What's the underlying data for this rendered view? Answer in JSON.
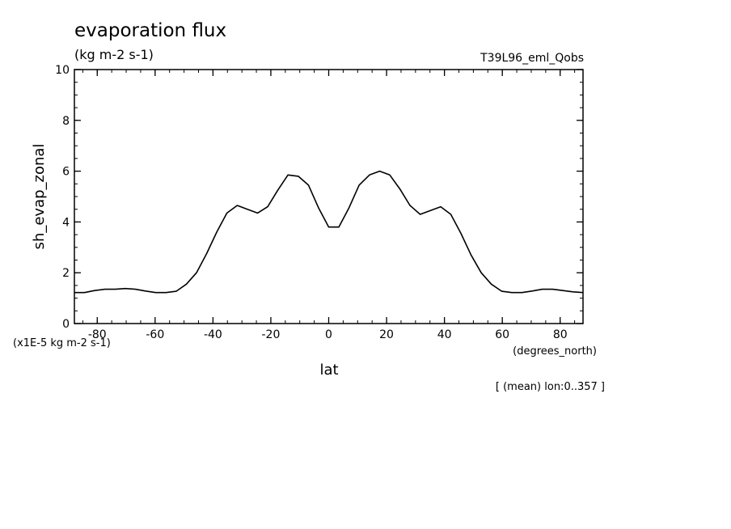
{
  "chart_data": {
    "type": "line",
    "title": "evaporation flux",
    "units": "(kg m-2 s-1)",
    "experiment": "T39L96_eml_Qobs",
    "ylabel": "sh_evap_zonal",
    "xlabel": "lat",
    "x_units": "(degrees_north)",
    "y_scale_note": "(x1E-5 kg m-2 s-1)",
    "footnote": "[ (mean) lon:0..357 ]",
    "xlim": [
      -87.9,
      87.9
    ],
    "ylim": [
      0,
      10
    ],
    "grid": false,
    "x_ticks": [
      -80,
      -60,
      -40,
      -20,
      0,
      20,
      40,
      60,
      80
    ],
    "x_tick_labels": [
      "-80",
      "-60",
      "-40",
      "-20",
      "0",
      "20",
      "40",
      "60",
      "80"
    ],
    "y_ticks": [
      0,
      2,
      4,
      6,
      8,
      10
    ],
    "y_tick_labels": [
      "0",
      "2",
      "4",
      "6",
      "8",
      "10"
    ],
    "series": [
      {
        "x": [
          -87.9,
          -84.4,
          -80.9,
          -77.4,
          -73.8,
          -70.3,
          -66.8,
          -63.3,
          -59.8,
          -56.2,
          -52.7,
          -49.2,
          -45.7,
          -42.2,
          -38.7,
          -35.2,
          -31.6,
          -28.1,
          -24.6,
          -21.1,
          -17.6,
          -14.1,
          -10.5,
          -7.0,
          -3.5,
          0.0,
          3.5,
          7.0,
          10.5,
          14.1,
          17.6,
          21.1,
          24.6,
          28.1,
          31.6,
          35.2,
          38.7,
          42.2,
          45.7,
          49.2,
          52.7,
          56.2,
          59.8,
          63.3,
          66.8,
          70.3,
          73.8,
          77.4,
          80.9,
          84.4,
          87.9
        ],
        "y": [
          1.22,
          1.22,
          1.3,
          1.35,
          1.35,
          1.38,
          1.35,
          1.28,
          1.22,
          1.22,
          1.27,
          1.55,
          2.0,
          2.75,
          3.6,
          4.35,
          4.65,
          4.5,
          4.35,
          4.6,
          5.25,
          5.85,
          5.8,
          5.45,
          4.55,
          3.8,
          3.8,
          4.55,
          5.45,
          5.85,
          6.0,
          5.85,
          5.3,
          4.65,
          4.3,
          4.45,
          4.6,
          4.3,
          3.55,
          2.7,
          2.0,
          1.55,
          1.27,
          1.22,
          1.22,
          1.28,
          1.35,
          1.35,
          1.3,
          1.25,
          1.22
        ]
      }
    ]
  }
}
